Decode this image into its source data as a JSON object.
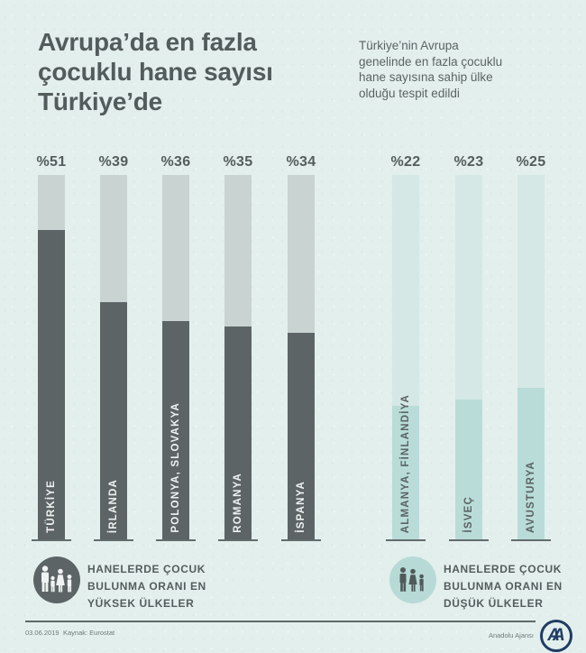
{
  "title": "Avrupa’da en fazla\nçocuklu hane sayısı\nTürkiye’de",
  "subtitle": "Türkiye’nin Avrupa\ngenelinde en fazla çocuklu\nhane sayısına sahip ülke\nolduğu tespit edildi",
  "chart_data": {
    "type": "bar",
    "title": "Avrupa'da en fazla çocuklu hane sayısı Türkiye'de",
    "unit": "percent",
    "ylim": [
      0,
      60
    ],
    "scale_max": 60,
    "grid": false,
    "groups": [
      {
        "id": "highest",
        "legend": "Hanelerde çocuk bulunma oranı en yüksek ülkeler",
        "categories": [
          "TÜRKİYE",
          "İRLANDA",
          "POLONYA, SLOVAKYA",
          "ROMANYA",
          "İSPANYA"
        ],
        "values": [
          51,
          39,
          36,
          35,
          34
        ],
        "display_labels": [
          "%51",
          "%39",
          "%36",
          "%35",
          "%34"
        ],
        "track_color": "#c9d3d2",
        "fill_color": "#5d6465",
        "label_color": "#eff2f1"
      },
      {
        "id": "lowest",
        "legend": "Hanelerde çocuk bulunma oranı en düşük ülkeler",
        "categories": [
          "ALMANYA, FİNLANDİYA",
          "İSVEÇ",
          "AVUSTURYA"
        ],
        "values": [
          22,
          23,
          25
        ],
        "display_labels": [
          "%22",
          "%23",
          "%25"
        ],
        "track_color": "#d5e8e5",
        "fill_color": "#b9dcd8",
        "label_color": "#5b6363"
      }
    ]
  },
  "legend_left": {
    "text": "HANELERDE ÇOCUK\nBULUNMA ORANI EN\nYÜKSEK ÜLKELER"
  },
  "legend_right": {
    "text": "HANELERDE ÇOCUK\nBULUNMA ORANI EN\nDÜŞÜK ÜLKELER"
  },
  "footer": {
    "date": "03.06.2019",
    "source": "Kaynak: Eurostat",
    "agency": "Anadolu Ajansı",
    "logo_text": "AA"
  },
  "colors": {
    "background": "#e3efed",
    "bar_track_gray": "#c9d3d2",
    "bar_fill_dark": "#5d6465",
    "bar_track_teal": "#d5e8e5",
    "bar_fill_teal": "#b9dcd8",
    "text_dark": "#545d5d",
    "logo_navy": "#1e3d63",
    "baseline": "#626c6c"
  }
}
